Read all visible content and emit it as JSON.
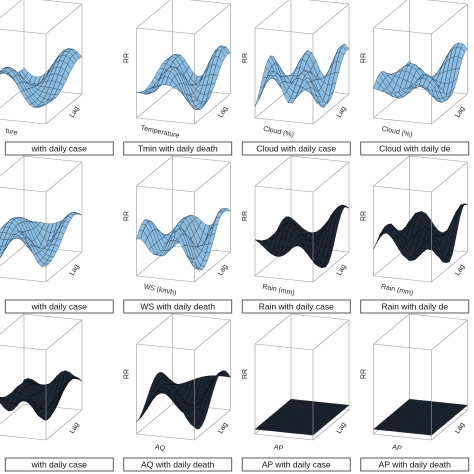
{
  "panels": [
    {
      "caption": "with daily case",
      "xlabel": "ture",
      "lag": "Lag",
      "ylabel": "",
      "dark": false
    },
    {
      "caption": "Tmin with daily death",
      "xlabel": "Temperature",
      "lag": "Lag",
      "ylabel": "RR",
      "dark": false
    },
    {
      "caption": "Cloud with daily case",
      "xlabel": "Cloud (%)",
      "lag": "Lag",
      "ylabel": "RR",
      "dark": false
    },
    {
      "caption": "Cloud with daily de",
      "xlabel": "Cloud (%)",
      "lag": "Lag",
      "ylabel": "RR",
      "dark": false
    },
    {
      "caption": "with daily case",
      "xlabel": "",
      "lag": "Lag",
      "ylabel": "",
      "dark": false
    },
    {
      "caption": "WS with daily death",
      "xlabel": "WS (km/h)",
      "lag": "Lag",
      "ylabel": "RR",
      "dark": false
    },
    {
      "caption": "Rain with daily case",
      "xlabel": "Rain (mm)",
      "lag": "Lag",
      "ylabel": "RR",
      "dark": true
    },
    {
      "caption": "Rain with daily de",
      "xlabel": "Rain (mm)",
      "lag": "Lag",
      "ylabel": "RR",
      "dark": true
    },
    {
      "caption": "with daily case",
      "xlabel": "",
      "lag": "Lag",
      "ylabel": "",
      "dark": true
    },
    {
      "caption": "AQ with daily death",
      "xlabel": "AQ",
      "lag": "Lag",
      "ylabel": "RR",
      "dark": true
    },
    {
      "caption": "AP with daily case",
      "xlabel": "AP",
      "lag": "Lag",
      "ylabel": "RR",
      "dark": true
    },
    {
      "caption": "AP with daily death",
      "xlabel": "AP",
      "lag": "Lag",
      "ylabel": "RR",
      "dark": true
    }
  ]
}
